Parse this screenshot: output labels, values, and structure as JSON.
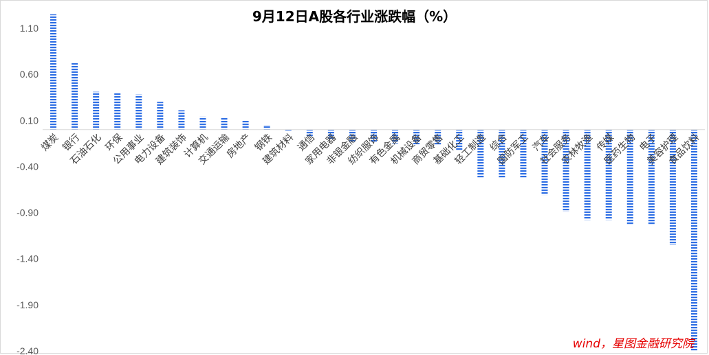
{
  "chart_data": {
    "type": "bar",
    "title": "9月12日A股各行业涨跌幅（%）",
    "source": "wind，星图金融研究院",
    "xlabel": "",
    "ylabel": "",
    "ylim": [
      -2.4,
      1.2
    ],
    "yticks": [
      "1.10",
      "0.60",
      "0.10",
      "-0.40",
      "-0.90",
      "-1.40",
      "-1.90",
      "-2.40"
    ],
    "ytick_values": [
      1.1,
      0.6,
      0.1,
      -0.4,
      -0.9,
      -1.4,
      -1.9,
      -2.4
    ],
    "grid": false,
    "legend": "none",
    "bar_color": "#2f6fe4",
    "bar_pattern": "horizontal-stripes",
    "categories": [
      "煤炭",
      "银行",
      "石油石化",
      "环保",
      "公用事业",
      "电力设备",
      "建筑装饰",
      "计算机",
      "交通运输",
      "房地产",
      "钢铁",
      "建筑材料",
      "通信",
      "家用电器",
      "非银金融",
      "纺织服饰",
      "有色金属",
      "机械设备",
      "商贸零售",
      "基础化工",
      "轻工制造",
      "综合",
      "国防军工",
      "汽车",
      "社会服务",
      "农林牧渔",
      "传媒",
      "医药生物",
      "电子",
      "美容护理",
      "食品饮料"
    ],
    "values": [
      1.25,
      0.72,
      0.41,
      0.4,
      0.38,
      0.3,
      0.21,
      0.14,
      0.13,
      0.1,
      0.05,
      -0.02,
      -0.08,
      -0.11,
      -0.13,
      -0.14,
      -0.15,
      -0.16,
      -0.17,
      -0.23,
      -0.53,
      -0.53,
      -0.53,
      -0.71,
      -0.89,
      -0.98,
      -0.98,
      -1.03,
      -1.03,
      -1.25,
      -2.4
    ]
  }
}
